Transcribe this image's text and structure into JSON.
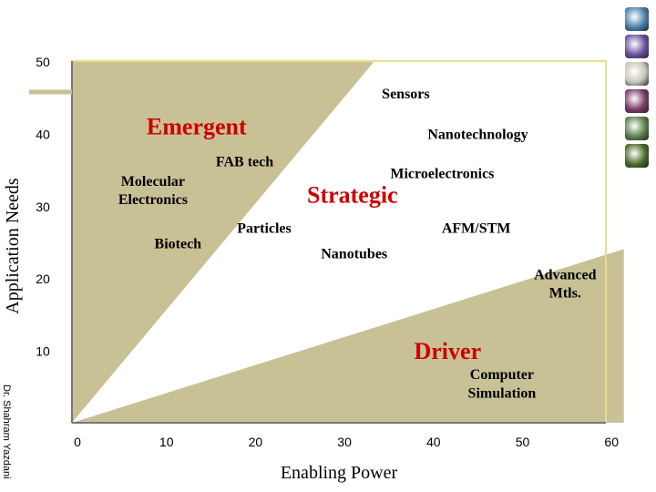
{
  "chart_data": {
    "type": "area",
    "xlabel": "Enabling Power",
    "ylabel": "Application Needs",
    "xlim": [
      0,
      60
    ],
    "ylim": [
      0,
      50
    ],
    "x_ticks": [
      "0",
      "10",
      "20",
      "30",
      "40",
      "50",
      "60"
    ],
    "y_ticks": [
      "10",
      "20",
      "30",
      "40",
      "50"
    ],
    "regions": [
      {
        "name": "Emergent",
        "color": "#c9c196",
        "polygon": [
          [
            0,
            0
          ],
          [
            0,
            50
          ],
          [
            34,
            50
          ]
        ]
      },
      {
        "name": "Strategic",
        "color": "#ffffff",
        "polygon": [
          [
            0,
            0
          ],
          [
            34,
            50
          ],
          [
            62,
            50
          ],
          [
            62,
            24
          ]
        ]
      },
      {
        "name": "Driver",
        "color": "#c9c196",
        "polygon": [
          [
            0,
            0
          ],
          [
            62,
            24
          ],
          [
            62,
            0
          ]
        ]
      }
    ],
    "annotations": [
      {
        "id": "sensors",
        "text": "Sensors",
        "x": 37.5,
        "y": 45.6,
        "style": "bold"
      },
      {
        "id": "emergent",
        "text": "Emergent",
        "x": 14,
        "y": 40.6,
        "style": "red"
      },
      {
        "id": "nanotech",
        "text": "Nanotechnology",
        "x": 45.6,
        "y": 40.0,
        "style": "bold"
      },
      {
        "id": "fab",
        "text": "FAB tech",
        "x": 19.4,
        "y": 36.2,
        "style": "bold"
      },
      {
        "id": "micro",
        "text": "Microelectronics",
        "x": 41.6,
        "y": 34.6,
        "style": "bold"
      },
      {
        "id": "molecular1",
        "text": "Molecular",
        "x": 9.1,
        "y": 33.5,
        "style": "bold"
      },
      {
        "id": "molecular2",
        "text": "Electronics",
        "x": 9.1,
        "y": 31.0,
        "style": "bold"
      },
      {
        "id": "strategic",
        "text": "Strategic",
        "x": 31.5,
        "y": 31.2,
        "style": "red"
      },
      {
        "id": "particles",
        "text": "Particles",
        "x": 21.6,
        "y": 27.0,
        "style": "bold"
      },
      {
        "id": "afm",
        "text": "AFM/STM",
        "x": 45.4,
        "y": 27.0,
        "style": "bold"
      },
      {
        "id": "biotech",
        "text": "Biotech",
        "x": 11.9,
        "y": 24.9,
        "style": "bold"
      },
      {
        "id": "nanotubes",
        "text": "Nanotubes",
        "x": 31.7,
        "y": 23.5,
        "style": "bold"
      },
      {
        "id": "adv1",
        "text": "Advanced",
        "x": 55.4,
        "y": 20.6,
        "style": "bold"
      },
      {
        "id": "adv2",
        "text": "Mtls.",
        "x": 55.4,
        "y": 18.1,
        "style": "bold"
      },
      {
        "id": "driver",
        "text": "Driver",
        "x": 42.2,
        "y": 9.6,
        "style": "red"
      },
      {
        "id": "comp1",
        "text": "Computer",
        "x": 48.3,
        "y": 6.8,
        "style": "bold"
      },
      {
        "id": "comp2",
        "text": "Simulation",
        "x": 48.3,
        "y": 4.2,
        "style": "bold"
      }
    ]
  },
  "credit": "Dr. Shahram Yazdani",
  "side_icons": [
    {
      "name": "globe-icon",
      "color": "#4a7fa8"
    },
    {
      "name": "atom-icon",
      "color": "#6a4fa0"
    },
    {
      "name": "shell-icon",
      "color": "#c9c6b8"
    },
    {
      "name": "molecule-icon",
      "color": "#7a3a6a"
    },
    {
      "name": "leaf-icon",
      "color": "#5a7f4a"
    },
    {
      "name": "plant-icon",
      "color": "#4a6a2a"
    }
  ]
}
